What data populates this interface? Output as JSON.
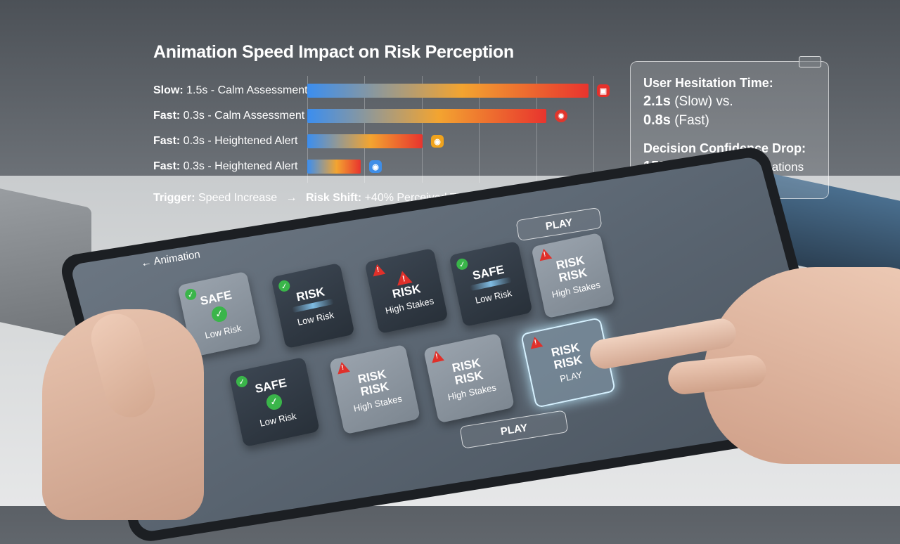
{
  "chart": {
    "title": "Animation Speed Impact on Risk Perception",
    "rows": [
      {
        "speed": "Slow:",
        "label": " 1.5s - Calm Assessment",
        "value": 100,
        "icon": "monitor-icon",
        "icon_color": "#e4302b"
      },
      {
        "speed": "Fast:",
        "label": " 0.3s - Calm Assessment",
        "value": 85,
        "icon": "sun-alert-icon",
        "icon_color": "#e0362c"
      },
      {
        "speed": "Fast:",
        "label": " 0.3s - Heightened Alert",
        "value": 41,
        "icon": "camera-icon",
        "icon_color": "#f0a31d"
      },
      {
        "speed": "Fast:",
        "label": " 0.3s - Heightened Alert",
        "value": 19,
        "icon": "camera-icon",
        "icon_color": "#3f8ee8"
      }
    ],
    "trigger_label": "Trigger:",
    "trigger_text": " Speed Increase",
    "arrow": "→",
    "shift_label": "Risk Shift:",
    "shift_text": " +40% Perceived Threat",
    "colors": {
      "start": "#3b8ef0",
      "mid": "#f3a430",
      "end": "#e8342e"
    }
  },
  "stats": {
    "hesitation_heading": "User Hesitation Time:",
    "slow_value": "2.1s",
    "slow_suffix": " (Slow) vs.",
    "fast_value": "0.8s",
    "fast_suffix": " (Fast)",
    "confidence_heading": "Decision Confidence Drop:",
    "drop_value": "15%",
    "drop_suffix": " Under Rapid Animations"
  },
  "tablet": {
    "back_arrow": "←",
    "nav_title": "Animation",
    "play_top": "PLAY",
    "play_bottom": "PLAY",
    "cards": [
      {
        "word1": "SAFE",
        "word2": "",
        "sub": "Low Risk"
      },
      {
        "word1": "RISK",
        "word2": "",
        "sub": "Low Risk"
      },
      {
        "word1": "RISK",
        "word2": "",
        "sub": "High Stakes"
      },
      {
        "word1": "SAFE",
        "word2": "",
        "sub": "Low Risk"
      },
      {
        "word1": "RISK",
        "word2": "RISK",
        "sub": "High Stakes"
      },
      {
        "word1": "SAFE",
        "word2": "",
        "sub": "Low Risk"
      },
      {
        "word1": "RISK",
        "word2": "RISK",
        "sub": "High Stakes"
      },
      {
        "word1": "RISK",
        "word2": "RISK",
        "sub": "High Stakes"
      },
      {
        "word1": "RISK",
        "word2": "RISK",
        "sub": "PLAY"
      }
    ]
  }
}
